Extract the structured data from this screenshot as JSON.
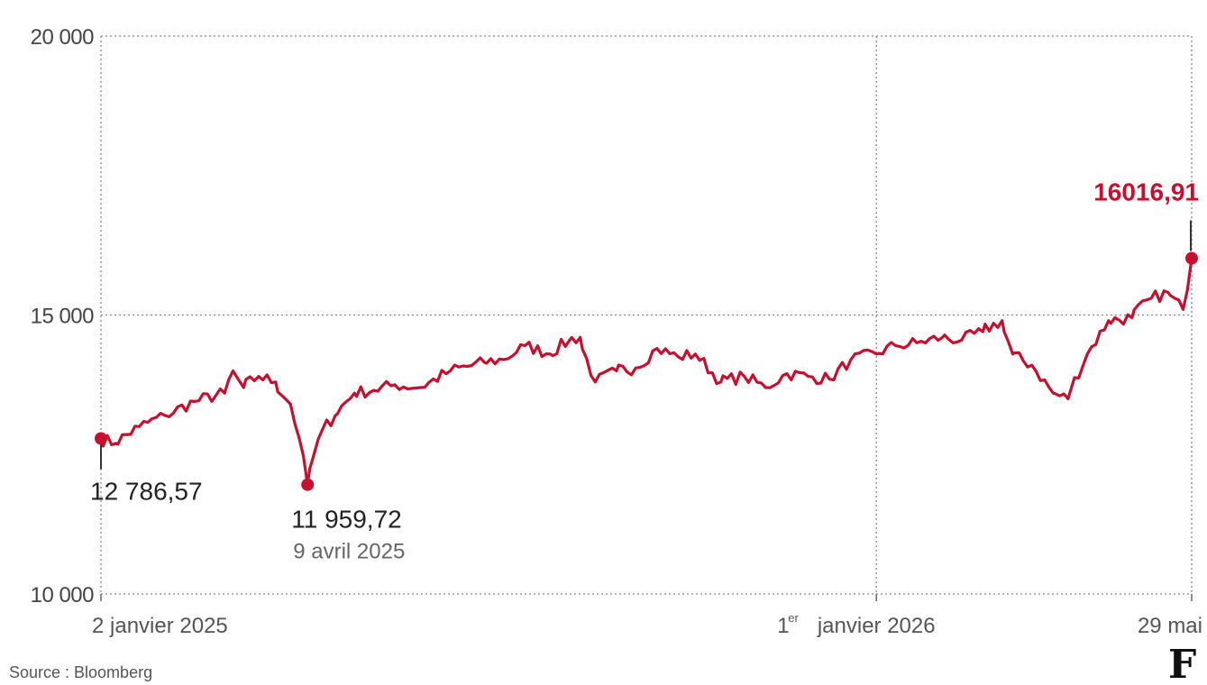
{
  "chart_data": {
    "type": "line",
    "series": [
      {
        "color": "#c8102e",
        "x": [
          "2025-01-02",
          "2025-01-09",
          "2025-01-20",
          "2025-02-01",
          "2025-02-15",
          "2025-03-01",
          "2025-03-05",
          "2025-03-10",
          "2025-03-17",
          "2025-03-25",
          "2025-04-01",
          "2025-04-05",
          "2025-04-09",
          "2025-04-12",
          "2025-04-16",
          "2025-04-22",
          "2025-05-01",
          "2025-05-10",
          "2025-05-20",
          "2025-06-01",
          "2025-06-15",
          "2025-07-01",
          "2025-07-10",
          "2025-07-20",
          "2025-08-01",
          "2025-08-10",
          "2025-08-15",
          "2025-08-22",
          "2025-09-01",
          "2025-09-10",
          "2025-09-20",
          "2025-09-30",
          "2025-10-08",
          "2025-10-20",
          "2025-10-31",
          "2025-11-10",
          "2025-11-20",
          "2025-11-30",
          "2025-12-10",
          "2025-12-20",
          "2026-01-01",
          "2026-01-10",
          "2026-01-20",
          "2026-02-01",
          "2026-02-10",
          "2026-02-20",
          "2026-03-01",
          "2026-03-06",
          "2026-03-15",
          "2026-03-25",
          "2026-04-01",
          "2026-04-10",
          "2026-04-20",
          "2026-05-01",
          "2026-05-10",
          "2026-05-18",
          "2026-05-25",
          "2026-05-29"
        ],
        "y": [
          12786.57,
          12700,
          13000,
          13200,
          13450,
          13600,
          14000,
          13700,
          13900,
          13800,
          13400,
          12800,
          11959.72,
          12500,
          12950,
          13200,
          13600,
          13650,
          13750,
          13700,
          14000,
          14150,
          14200,
          14450,
          14300,
          14550,
          14600,
          13800,
          14000,
          14050,
          14400,
          14250,
          14300,
          13800,
          13900,
          13700,
          13950,
          13900,
          13850,
          14200,
          14300,
          14450,
          14500,
          14600,
          14550,
          14700,
          14900,
          14300,
          14100,
          13600,
          13500,
          14300,
          14900,
          14950,
          15300,
          15400,
          15100,
          16016.91
        ]
      }
    ],
    "ylim": [
      10000,
      20000
    ],
    "xlim": [
      "2025-01-02",
      "2026-05-29"
    ],
    "yticks": [
      10000,
      15000,
      20000
    ],
    "ytick_labels": [
      "10 000",
      "15 000",
      "20 000"
    ],
    "xticks": [
      "2025-01-02",
      "2026-01-01",
      "2026-05-29"
    ],
    "xtick_labels": [
      "2 janvier 2025",
      "janvier 2026",
      "29 mai"
    ],
    "grid": true,
    "annotations": {
      "first": {
        "value_label": "12 786,57"
      },
      "low": {
        "value_label": "11 959,72",
        "date_label": "9 avril 2025"
      },
      "last": {
        "value_label": "16016,91"
      }
    },
    "source": "Source : Bloomberg"
  }
}
